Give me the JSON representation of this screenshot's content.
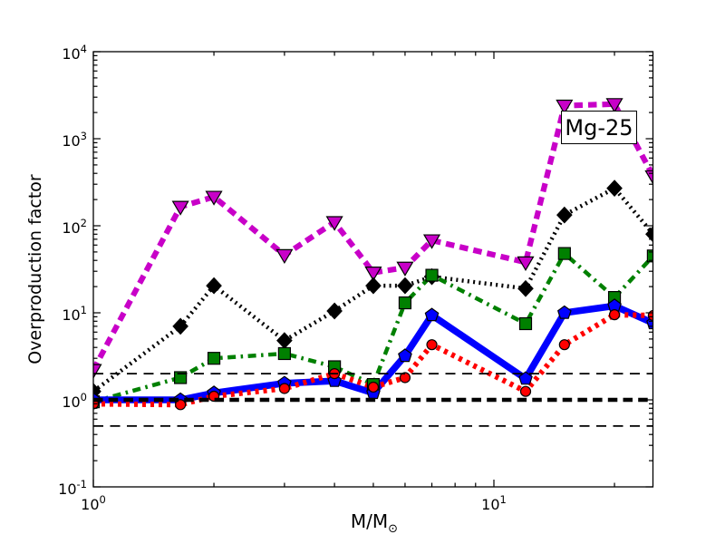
{
  "chart_data": {
    "type": "line",
    "title": "",
    "xlabel": {
      "text": "M/M",
      "subscript": "⊙"
    },
    "ylabel": "Overproduction factor",
    "annotation": {
      "text": "Mg-25"
    },
    "log_x": true,
    "log_y": true,
    "xlim": [
      1,
      25
    ],
    "ylim": [
      0.1,
      10000
    ],
    "grid": false,
    "legend": "none",
    "x_ticks": [
      {
        "value": 1,
        "base": "10",
        "exp": "0"
      },
      {
        "value": 10,
        "base": "10",
        "exp": "1"
      }
    ],
    "y_ticks": [
      {
        "value": 0.1,
        "base": "10",
        "exp": "-1"
      },
      {
        "value": 1,
        "base": "10",
        "exp": "0"
      },
      {
        "value": 10,
        "base": "10",
        "exp": "1"
      },
      {
        "value": 100,
        "base": "10",
        "exp": "2"
      },
      {
        "value": 1000,
        "base": "10",
        "exp": "3"
      },
      {
        "value": 10000,
        "base": "10",
        "exp": "4"
      }
    ],
    "x": [
      1,
      1.65,
      2,
      3,
      4,
      5,
      6,
      7,
      12,
      15,
      20,
      25
    ],
    "series": [
      {
        "name": "magenta-dashed-triangles",
        "color": "#c800c8",
        "marker": "triangle-down",
        "line": "dashed",
        "width": 6.2,
        "values": [
          2.2,
          165,
          215,
          46,
          110,
          29,
          33,
          68,
          38,
          2400,
          2500,
          370
        ]
      },
      {
        "name": "black-dotted-diamonds",
        "color": "#000000",
        "marker": "diamond",
        "line": "dotted",
        "width": 4.5,
        "values": [
          1.25,
          7,
          20.5,
          4.8,
          10.5,
          20.5,
          20.5,
          26,
          19,
          133,
          270,
          80
        ]
      },
      {
        "name": "green-dashdot-squares",
        "color": "#008000",
        "marker": "square",
        "line": "dashdot",
        "width": 4.5,
        "values": [
          0.95,
          1.8,
          3.0,
          3.4,
          2.4,
          1.5,
          13,
          27,
          7.5,
          48,
          15,
          45
        ]
      },
      {
        "name": "blue-solid-pentagons",
        "color": "#0000ff",
        "marker": "pentagon",
        "line": "solid",
        "width": 7.5,
        "values": [
          1.0,
          1.0,
          1.2,
          1.55,
          1.65,
          1.2,
          3.2,
          9.4,
          1.75,
          10,
          12,
          7.6
        ]
      },
      {
        "name": "red-densedot-circles",
        "color": "#ff0000",
        "marker": "circle",
        "line": "densely-dotted",
        "width": 6,
        "values": [
          0.9,
          0.88,
          1.1,
          1.35,
          2.0,
          1.4,
          1.8,
          4.3,
          1.25,
          4.3,
          9.5,
          9.3
        ]
      }
    ],
    "reference_lines": [
      {
        "value": 2,
        "style": "dashed-thin",
        "width": 1.8,
        "color": "#000000"
      },
      {
        "value": 1,
        "style": "dashed-thick",
        "width": 4.5,
        "color": "#000000"
      },
      {
        "value": 0.5,
        "style": "dashed-thin",
        "width": 1.8,
        "color": "#000000"
      }
    ]
  }
}
